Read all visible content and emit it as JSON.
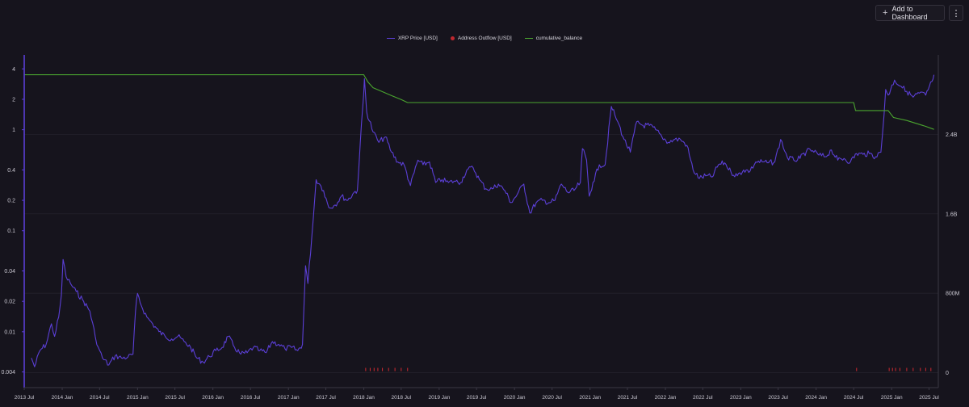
{
  "toolbar": {
    "add_label": "Add to Dashboard",
    "add_icon": "plus-icon",
    "menu_icon": "kebab-icon"
  },
  "colors": {
    "background": "#16141d",
    "price": "#5b3fd6",
    "outflow": "#c0282f",
    "balance": "#4aa42f",
    "grid": "#24222c"
  },
  "chart_data": {
    "type": "line",
    "title": "",
    "grid": true,
    "legend_position": "top-center",
    "legend": [
      {
        "name": "XRP Price [USD]",
        "color": "#5b3fd6",
        "marker": "line"
      },
      {
        "name": "Address Outflow [USD]",
        "color": "#c0282f",
        "marker": "dot"
      },
      {
        "name": "cumulative_balance",
        "color": "#4aa42f",
        "marker": "line"
      }
    ],
    "x_ticks": [
      "2013 Jul",
      "2014 Jan",
      "2014 Jul",
      "2015 Jan",
      "2015 Jul",
      "2016 Jan",
      "2016 Jul",
      "2017 Jan",
      "2017 Jul",
      "2018 Jan",
      "2018 Jul",
      "2019 Jan",
      "2019 Jul",
      "2020 Jan",
      "2020 Jul",
      "2021 Jan",
      "2021 Jul",
      "2022 Jan",
      "2022 Jul",
      "2023 Jan",
      "2023 Jul",
      "2024 Jan",
      "2024 Jul",
      "2025 Jan",
      "2025 Jul"
    ],
    "x_range": [
      "2013-07-01",
      "2025-08-15"
    ],
    "y_left": {
      "label": "",
      "scale": "log",
      "range": [
        0.0028,
        5.5
      ],
      "ticks": [
        0.004,
        0.01,
        0.02,
        0.04,
        0.1,
        0.2,
        0.4,
        1,
        2,
        4
      ],
      "tick_labels": [
        "0.004",
        "0.01",
        "0.02",
        "0.04",
        "0.1",
        "0.2",
        "0.4",
        "1",
        "2",
        "4"
      ]
    },
    "y_right": {
      "label": "",
      "scale": "linear",
      "range": [
        -150000000,
        3200000000
      ],
      "ticks": [
        0,
        800000000,
        1600000000,
        2400000000
      ],
      "tick_labels": [
        "0",
        "800M",
        "1.6B",
        "2.4B"
      ]
    },
    "series": [
      {
        "name": "XRP Price [USD]",
        "axis": "left",
        "color": "#5b3fd6",
        "points": [
          [
            "2013-08-05",
            0.0055
          ],
          [
            "2013-08-20",
            0.0045
          ],
          [
            "2013-09-15",
            0.0065
          ],
          [
            "2013-10-15",
            0.0075
          ],
          [
            "2013-11-10",
            0.012
          ],
          [
            "2013-11-25",
            0.009
          ],
          [
            "2013-12-15",
            0.014
          ],
          [
            "2013-12-28",
            0.023
          ],
          [
            "2014-01-05",
            0.052
          ],
          [
            "2014-01-20",
            0.035
          ],
          [
            "2014-02-10",
            0.03
          ],
          [
            "2014-03-10",
            0.025
          ],
          [
            "2014-04-15",
            0.02
          ],
          [
            "2014-05-15",
            0.016
          ],
          [
            "2014-06-10",
            0.009
          ],
          [
            "2014-06-25",
            0.007
          ],
          [
            "2014-07-15",
            0.0055
          ],
          [
            "2014-08-15",
            0.0047
          ],
          [
            "2014-09-15",
            0.0058
          ],
          [
            "2014-10-15",
            0.0055
          ],
          [
            "2014-11-15",
            0.0056
          ],
          [
            "2014-12-10",
            0.006
          ],
          [
            "2014-12-22",
            0.016
          ],
          [
            "2015-01-01",
            0.024
          ],
          [
            "2015-01-20",
            0.018
          ],
          [
            "2015-02-15",
            0.014
          ],
          [
            "2015-03-15",
            0.012
          ],
          [
            "2015-04-15",
            0.01
          ],
          [
            "2015-05-15",
            0.009
          ],
          [
            "2015-06-15",
            0.0085
          ],
          [
            "2015-07-15",
            0.009
          ],
          [
            "2015-08-15",
            0.008
          ],
          [
            "2015-09-15",
            0.007
          ],
          [
            "2015-10-15",
            0.0055
          ],
          [
            "2015-11-15",
            0.005
          ],
          [
            "2015-12-15",
            0.0057
          ],
          [
            "2016-01-15",
            0.0065
          ],
          [
            "2016-02-15",
            0.007
          ],
          [
            "2016-03-15",
            0.009
          ],
          [
            "2016-04-15",
            0.007
          ],
          [
            "2016-05-15",
            0.006
          ],
          [
            "2016-06-15",
            0.0062
          ],
          [
            "2016-07-15",
            0.007
          ],
          [
            "2016-08-15",
            0.0065
          ],
          [
            "2016-09-15",
            0.0062
          ],
          [
            "2016-10-15",
            0.008
          ],
          [
            "2016-11-15",
            0.0075
          ],
          [
            "2016-12-15",
            0.0068
          ],
          [
            "2017-01-15",
            0.007
          ],
          [
            "2017-02-15",
            0.0065
          ],
          [
            "2017-03-10",
            0.0075
          ],
          [
            "2017-03-25",
            0.045
          ],
          [
            "2017-04-05",
            0.03
          ],
          [
            "2017-05-01",
            0.13
          ],
          [
            "2017-05-15",
            0.32
          ],
          [
            "2017-06-01",
            0.29
          ],
          [
            "2017-06-20",
            0.25
          ],
          [
            "2017-07-15",
            0.17
          ],
          [
            "2017-08-15",
            0.18
          ],
          [
            "2017-09-15",
            0.22
          ],
          [
            "2017-10-15",
            0.2
          ],
          [
            "2017-11-15",
            0.24
          ],
          [
            "2017-12-01",
            0.25
          ],
          [
            "2017-12-15",
            0.75
          ],
          [
            "2017-12-31",
            2.2
          ],
          [
            "2018-01-04",
            3.2
          ],
          [
            "2018-01-15",
            1.5
          ],
          [
            "2018-02-15",
            0.95
          ],
          [
            "2018-03-15",
            0.75
          ],
          [
            "2018-04-15",
            0.85
          ],
          [
            "2018-05-15",
            0.6
          ],
          [
            "2018-06-15",
            0.48
          ],
          [
            "2018-07-15",
            0.45
          ],
          [
            "2018-08-15",
            0.28
          ],
          [
            "2018-09-20",
            0.5
          ],
          [
            "2018-10-15",
            0.45
          ],
          [
            "2018-11-15",
            0.48
          ],
          [
            "2018-12-15",
            0.3
          ],
          [
            "2019-01-15",
            0.32
          ],
          [
            "2019-02-15",
            0.3
          ],
          [
            "2019-03-15",
            0.31
          ],
          [
            "2019-04-15",
            0.3
          ],
          [
            "2019-05-15",
            0.4
          ],
          [
            "2019-06-15",
            0.42
          ],
          [
            "2019-07-15",
            0.32
          ],
          [
            "2019-08-15",
            0.26
          ],
          [
            "2019-09-15",
            0.26
          ],
          [
            "2019-10-15",
            0.29
          ],
          [
            "2019-11-15",
            0.25
          ],
          [
            "2019-12-15",
            0.19
          ],
          [
            "2020-01-15",
            0.23
          ],
          [
            "2020-02-15",
            0.29
          ],
          [
            "2020-03-15",
            0.15
          ],
          [
            "2020-04-15",
            0.19
          ],
          [
            "2020-05-15",
            0.2
          ],
          [
            "2020-06-15",
            0.19
          ],
          [
            "2020-07-15",
            0.2
          ],
          [
            "2020-08-15",
            0.29
          ],
          [
            "2020-09-15",
            0.24
          ],
          [
            "2020-10-15",
            0.25
          ],
          [
            "2020-11-15",
            0.3
          ],
          [
            "2020-11-25",
            0.65
          ],
          [
            "2020-12-15",
            0.5
          ],
          [
            "2020-12-28",
            0.22
          ],
          [
            "2021-01-15",
            0.3
          ],
          [
            "2021-02-15",
            0.45
          ],
          [
            "2021-03-15",
            0.45
          ],
          [
            "2021-04-14",
            1.7
          ],
          [
            "2021-05-01",
            1.4
          ],
          [
            "2021-05-15",
            1.2
          ],
          [
            "2021-06-15",
            0.8
          ],
          [
            "2021-07-15",
            0.6
          ],
          [
            "2021-08-15",
            1.2
          ],
          [
            "2021-09-15",
            1.1
          ],
          [
            "2021-10-15",
            1.1
          ],
          [
            "2021-11-15",
            1.0
          ],
          [
            "2021-12-15",
            0.85
          ],
          [
            "2022-01-15",
            0.75
          ],
          [
            "2022-02-15",
            0.8
          ],
          [
            "2022-03-15",
            0.8
          ],
          [
            "2022-04-15",
            0.7
          ],
          [
            "2022-05-15",
            0.4
          ],
          [
            "2022-06-15",
            0.33
          ],
          [
            "2022-07-15",
            0.35
          ],
          [
            "2022-08-15",
            0.34
          ],
          [
            "2022-09-15",
            0.45
          ],
          [
            "2022-10-15",
            0.47
          ],
          [
            "2022-11-15",
            0.38
          ],
          [
            "2022-12-15",
            0.35
          ],
          [
            "2023-01-15",
            0.4
          ],
          [
            "2023-02-15",
            0.39
          ],
          [
            "2023-03-15",
            0.48
          ],
          [
            "2023-04-15",
            0.48
          ],
          [
            "2023-05-15",
            0.47
          ],
          [
            "2023-06-15",
            0.48
          ],
          [
            "2023-07-13",
            0.8
          ],
          [
            "2023-08-15",
            0.53
          ],
          [
            "2023-09-15",
            0.5
          ],
          [
            "2023-10-15",
            0.52
          ],
          [
            "2023-11-15",
            0.61
          ],
          [
            "2023-12-15",
            0.62
          ],
          [
            "2024-01-15",
            0.56
          ],
          [
            "2024-02-15",
            0.54
          ],
          [
            "2024-03-15",
            0.63
          ],
          [
            "2024-04-15",
            0.5
          ],
          [
            "2024-05-15",
            0.52
          ],
          [
            "2024-06-15",
            0.48
          ],
          [
            "2024-07-15",
            0.58
          ],
          [
            "2024-08-15",
            0.57
          ],
          [
            "2024-09-15",
            0.58
          ],
          [
            "2024-10-15",
            0.54
          ],
          [
            "2024-11-10",
            0.6
          ],
          [
            "2024-11-25",
            1.4
          ],
          [
            "2024-12-03",
            2.5
          ],
          [
            "2024-12-15",
            2.2
          ],
          [
            "2025-01-15",
            3.1
          ],
          [
            "2025-02-15",
            2.7
          ],
          [
            "2025-03-15",
            2.4
          ],
          [
            "2025-04-15",
            2.1
          ],
          [
            "2025-05-15",
            2.3
          ],
          [
            "2025-06-15",
            2.2
          ],
          [
            "2025-07-15",
            3.0
          ],
          [
            "2025-07-25",
            3.5
          ]
        ]
      },
      {
        "name": "cumulative_balance",
        "axis": "right",
        "color": "#4aa42f",
        "points": [
          [
            "2013-07-01",
            3000000000
          ],
          [
            "2018-01-01",
            3000000000
          ],
          [
            "2018-01-20",
            2930000000
          ],
          [
            "2018-02-15",
            2870000000
          ],
          [
            "2018-04-01",
            2830000000
          ],
          [
            "2018-05-15",
            2790000000
          ],
          [
            "2018-07-01",
            2750000000
          ],
          [
            "2018-08-01",
            2720000000
          ],
          [
            "2024-07-01",
            2720000000
          ],
          [
            "2024-07-10",
            2640000000
          ],
          [
            "2024-12-15",
            2640000000
          ],
          [
            "2025-01-10",
            2570000000
          ],
          [
            "2025-03-15",
            2540000000
          ],
          [
            "2025-06-15",
            2480000000
          ],
          [
            "2025-07-25",
            2450000000
          ]
        ]
      },
      {
        "name": "Address Outflow [USD]",
        "axis": "right",
        "color": "#c0282f",
        "style": "bars",
        "points": [
          [
            "2018-01-10",
            10000000
          ],
          [
            "2018-02-01",
            12000000
          ],
          [
            "2018-02-20",
            8000000
          ],
          [
            "2018-03-10",
            9000000
          ],
          [
            "2018-04-01",
            7000000
          ],
          [
            "2018-05-01",
            8000000
          ],
          [
            "2018-06-01",
            6000000
          ],
          [
            "2018-07-01",
            7000000
          ],
          [
            "2018-08-01",
            6000000
          ],
          [
            "2024-07-15",
            15000000
          ],
          [
            "2024-12-20",
            10000000
          ],
          [
            "2025-01-05",
            25000000
          ],
          [
            "2025-01-20",
            20000000
          ],
          [
            "2025-02-10",
            12000000
          ],
          [
            "2025-03-15",
            22000000
          ],
          [
            "2025-04-15",
            10000000
          ],
          [
            "2025-05-20",
            18000000
          ],
          [
            "2025-06-15",
            25000000
          ],
          [
            "2025-07-10",
            30000000
          ]
        ]
      }
    ]
  }
}
